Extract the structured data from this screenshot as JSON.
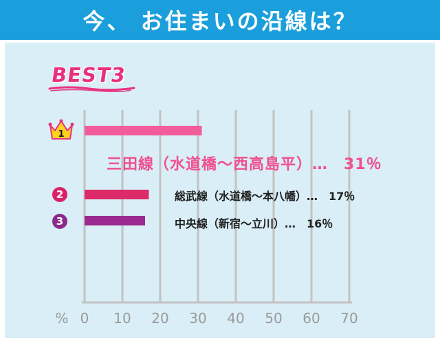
{
  "title": "今、 お住まいの沿線は？",
  "badge": "BEST3",
  "ranks": [
    "1",
    "2",
    "3"
  ],
  "colors": {
    "header": "#1a9fdc",
    "panel": "#d9eef6",
    "bar1": "#f35c9b",
    "bar2": "#dd2a68",
    "bar3": "#9a2a8f",
    "grid": "#c2c2c2"
  },
  "chart_data": {
    "type": "bar",
    "orientation": "horizontal",
    "categories": [
      "三田線（水道橋～西高島平）",
      "総武線（水道橋～本八幡）",
      "中央線（新宿～立川）"
    ],
    "values": [
      31,
      17,
      16
    ],
    "value_labels": [
      "31%",
      "17%",
      "16%"
    ],
    "xlabel": "%",
    "xlim": [
      0,
      70
    ],
    "xticks": [
      0,
      10,
      20,
      30,
      40,
      50,
      60,
      70
    ],
    "grid": true
  },
  "bar_labels": [
    "三田線（水道橋～西高島平）…　31％",
    "総武線（水道橋～本八幡）…　17％",
    "中央線（新宿～立川）…　16％"
  ]
}
